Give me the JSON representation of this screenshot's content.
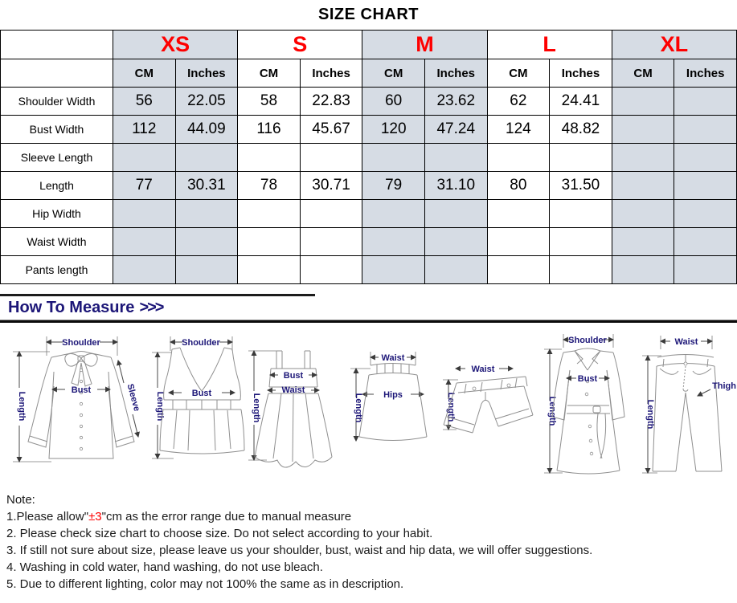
{
  "title": "SIZE CHART",
  "colors": {
    "accent_red": "#fe0000",
    "column_shade": "#d6dce4",
    "heading_navy": "#1d1778",
    "border_black": "#000000"
  },
  "table": {
    "sizes": [
      {
        "label": "XS",
        "shaded": true
      },
      {
        "label": "S",
        "shaded": false
      },
      {
        "label": "M",
        "shaded": true
      },
      {
        "label": "L",
        "shaded": false
      },
      {
        "label": "XL",
        "shaded": true
      }
    ],
    "unit_headers": [
      "CM",
      "Inches"
    ],
    "rows": [
      {
        "label": "Shoulder Width",
        "values": [
          "56",
          "22.05",
          "58",
          "22.83",
          "60",
          "23.62",
          "62",
          "24.41",
          "",
          ""
        ]
      },
      {
        "label": "Bust Width",
        "values": [
          "112",
          "44.09",
          "116",
          "45.67",
          "120",
          "47.24",
          "124",
          "48.82",
          "",
          ""
        ]
      },
      {
        "label": "Sleeve Length",
        "values": [
          "",
          "",
          "",
          "",
          "",
          "",
          "",
          "",
          "",
          ""
        ]
      },
      {
        "label": "Length",
        "values": [
          "77",
          "30.31",
          "78",
          "30.71",
          "79",
          "31.10",
          "80",
          "31.50",
          "",
          ""
        ]
      },
      {
        "label": "Hip Width",
        "values": [
          "",
          "",
          "",
          "",
          "",
          "",
          "",
          "",
          "",
          ""
        ]
      },
      {
        "label": "Waist Width",
        "values": [
          "",
          "",
          "",
          "",
          "",
          "",
          "",
          "",
          "",
          ""
        ]
      },
      {
        "label": "Pants length",
        "values": [
          "",
          "",
          "",
          "",
          "",
          "",
          "",
          "",
          "",
          ""
        ]
      }
    ]
  },
  "measure": {
    "heading": "How To Measure",
    "arrows": ">>>",
    "garments": [
      {
        "name": "blouse",
        "labels": {
          "shoulder": "Shoulder",
          "length": "Length",
          "bust": "Bust",
          "sleeve": "Sleeve"
        }
      },
      {
        "name": "vest",
        "labels": {
          "shoulder": "Shoulder",
          "length": "Length",
          "bust": "Bust"
        }
      },
      {
        "name": "dress",
        "labels": {
          "bust": "Bust",
          "waist": "Waist",
          "length": "Length"
        }
      },
      {
        "name": "skirt",
        "labels": {
          "waist": "Waist",
          "hips": "Hips",
          "length": "Length"
        }
      },
      {
        "name": "shorts",
        "labels": {
          "waist": "Waist",
          "length": "Length"
        }
      },
      {
        "name": "coat",
        "labels": {
          "shoulder": "Shoulder",
          "bust": "Bust",
          "length": "Length"
        }
      },
      {
        "name": "pants",
        "labels": {
          "waist": "Waist",
          "thigh": "Thigh",
          "length": "Length"
        }
      }
    ]
  },
  "notes": {
    "heading": "Note:",
    "line1_prefix": "1.Please allow\"",
    "line1_red": "±3",
    "line1_suffix": "\"cm as the error range due to manual measure",
    "items": [
      "2. Please check size chart to choose size. Do not select according to your habit.",
      "3. If still not sure about size, please leave us your shoulder, bust, waist and hip data, we will offer suggestions.",
      "4. Washing in cold water, hand washing, do not use bleach.",
      "5. Due to different lighting, color may not 100% the same as in description."
    ]
  }
}
